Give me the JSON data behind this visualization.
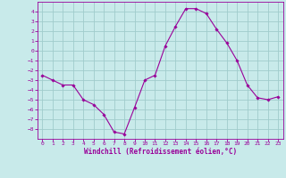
{
  "x": [
    0,
    1,
    2,
    3,
    4,
    5,
    6,
    7,
    8,
    9,
    10,
    11,
    12,
    13,
    14,
    15,
    16,
    17,
    18,
    19,
    20,
    21,
    22,
    23
  ],
  "y": [
    -2.5,
    -3.0,
    -3.5,
    -3.5,
    -5.0,
    -5.5,
    -6.5,
    -8.3,
    -8.5,
    -5.8,
    -3.0,
    -2.5,
    0.5,
    2.5,
    4.3,
    4.3,
    3.8,
    2.2,
    0.8,
    -1.0,
    -3.5,
    -4.8,
    -5.0,
    -4.7
  ],
  "line_color": "#990099",
  "marker": "D",
  "marker_size": 1.8,
  "bg_color": "#c8eaea",
  "grid_color": "#a0cccc",
  "xlabel": "Windchill (Refroidissement éolien,°C)",
  "xlabel_color": "#990099",
  "tick_color": "#990099",
  "spine_color": "#990099",
  "ylim": [
    -9,
    5
  ],
  "xlim": [
    -0.5,
    23.5
  ],
  "yticks": [
    -8,
    -7,
    -6,
    -5,
    -4,
    -3,
    -2,
    -1,
    0,
    1,
    2,
    3,
    4
  ],
  "xticks": [
    0,
    1,
    2,
    3,
    4,
    5,
    6,
    7,
    8,
    9,
    10,
    11,
    12,
    13,
    14,
    15,
    16,
    17,
    18,
    19,
    20,
    21,
    22,
    23
  ],
  "figsize": [
    3.2,
    2.0
  ],
  "dpi": 100
}
